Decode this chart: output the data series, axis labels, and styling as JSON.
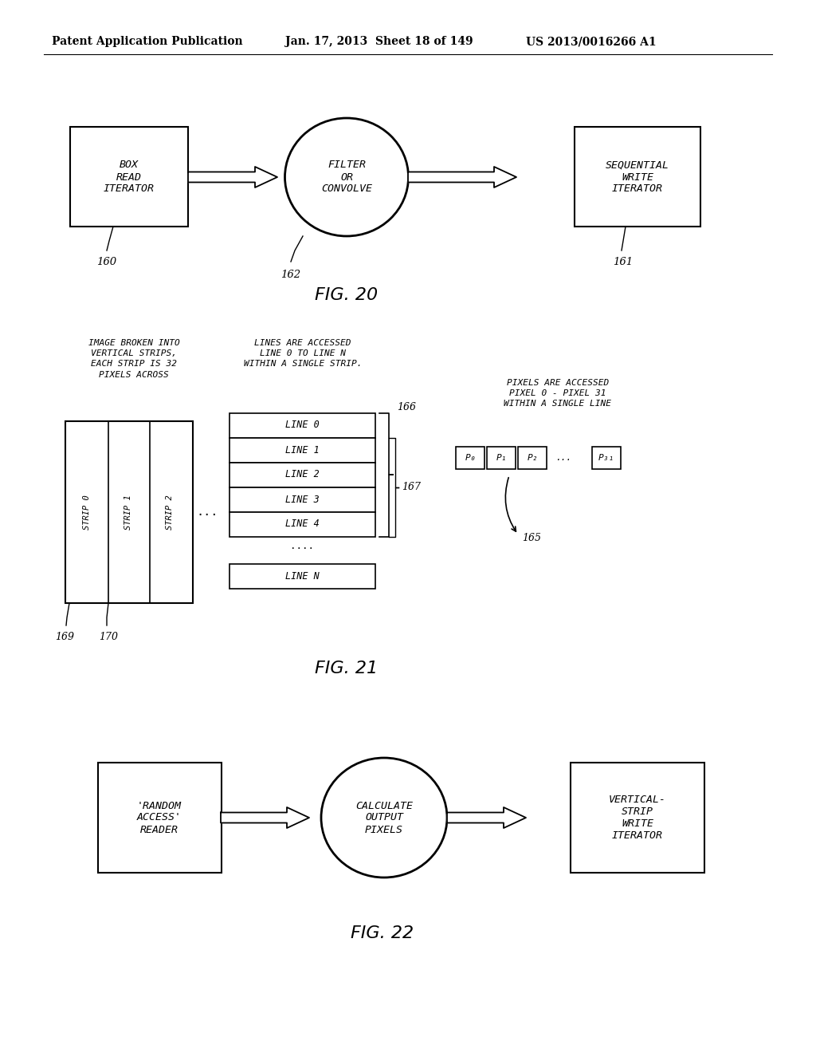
{
  "bg_color": "#ffffff",
  "header_left": "Patent Application Publication",
  "header_mid": "Jan. 17, 2013  Sheet 18 of 149",
  "header_right": "US 2013/0016266 A1",
  "fig20": {
    "title": "FIG. 20",
    "box1_text": "BOX\nREAD\nITERATOR",
    "box1_label": "160",
    "ellipse_text": "FILTER\nOR\nCONVOLVE",
    "ellipse_label": "162",
    "box2_text": "SEQUENTIAL\nWRITE\nITERATOR",
    "box2_label": "161"
  },
  "fig21": {
    "title": "FIG. 21",
    "annotation1": "IMAGE BROKEN INTO\nVERTICAL STRIPS,\nEACH STRIP IS 32\nPIXELS ACROSS",
    "annotation2": "LINES ARE ACCESSED\nLINE 0 TO LINE N\nWITHIN A SINGLE STRIP.",
    "annotation3": "PIXELS ARE ACCESSED\nPIXEL 0 - PIXEL 31\nWITHIN A SINGLE LINE",
    "strip_labels": [
      "STRIP 0",
      "STRIP 1",
      "STRIP 2"
    ],
    "line_labels": [
      "LINE 0",
      "LINE 1",
      "LINE 2",
      "LINE 3",
      "LINE 4"
    ],
    "label_166": "166",
    "label_167": "167",
    "label_165": "165",
    "label_169": "169",
    "label_170": "170"
  },
  "fig22": {
    "title": "FIG. 22",
    "box1_text": "'RANDOM\nACCESS'\nREADER",
    "ellipse_text": "CALCULATE\nOUTPUT\nPIXELS",
    "box2_text": "VERTICAL-\nSTRIP\nWRITE\nITERATOR"
  }
}
